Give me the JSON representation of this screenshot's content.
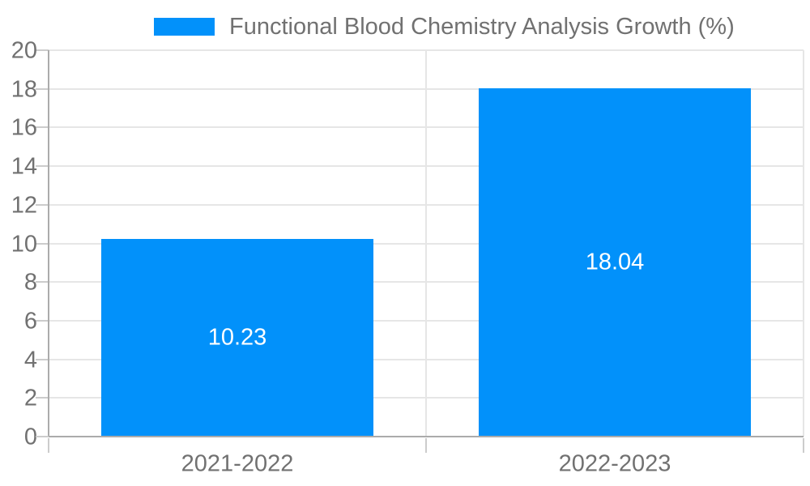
{
  "legend": {
    "series_label": "Functional Blood Chemistry Analysis Growth (%)"
  },
  "chart_data": {
    "type": "bar",
    "title": "Functional Blood Chemistry Analysis Growth (%)",
    "categories": [
      "2021-2022",
      "2022-2023"
    ],
    "series": [
      {
        "name": "Functional Blood Chemistry Analysis Growth (%)",
        "values": [
          10.23,
          18.04
        ],
        "value_labels": [
          "10.23",
          "18.04"
        ],
        "color": "#0291fa"
      }
    ],
    "xlabel": "",
    "ylabel": "",
    "ylim": [
      0,
      20
    ],
    "yticks": [
      0,
      2,
      4,
      6,
      8,
      10,
      12,
      14,
      16,
      18,
      20
    ],
    "ytick_labels": [
      "0",
      "2",
      "4",
      "6",
      "8",
      "10",
      "12",
      "14",
      "16",
      "18",
      "20"
    ],
    "grid": true,
    "legend_position": "top",
    "colors": {
      "bar": "#0291fa",
      "value_label": "#ffffff",
      "axis_text": "#717171",
      "gridline": "#e6e6e6",
      "axis_line": "#ababab",
      "tick": "#cccccc",
      "background": "#ffffff"
    }
  }
}
